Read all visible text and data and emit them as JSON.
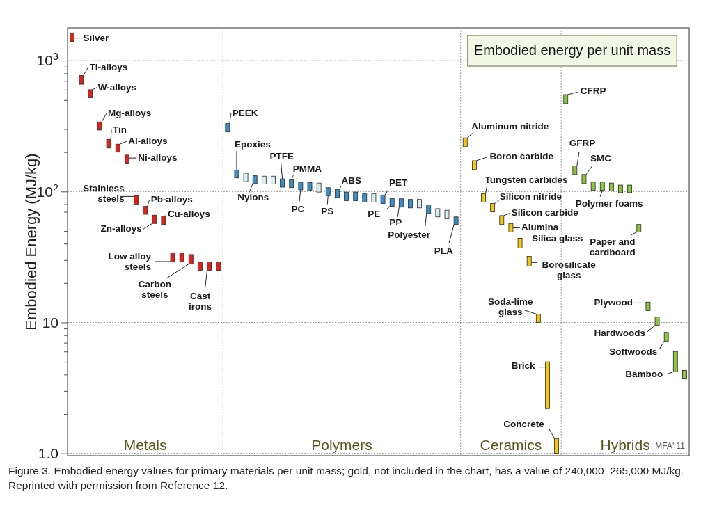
{
  "chart_data": {
    "type": "bar",
    "title": "Embodied energy per unit mass",
    "ylabel": "Embodied Energy (MJ/kg)",
    "log": true,
    "grid": true,
    "ylim": [
      0.96,
      1780
    ],
    "yticks": [
      {
        "value": 1,
        "label": "1.0"
      },
      {
        "value": 2,
        "label": null
      },
      {
        "value": 3,
        "label": null
      },
      {
        "value": 4,
        "label": null
      },
      {
        "value": 5,
        "label": null
      },
      {
        "value": 6,
        "label": null
      },
      {
        "value": 7,
        "label": null
      },
      {
        "value": 8,
        "label": null
      },
      {
        "value": 9,
        "label": null
      },
      10,
      {
        "value": 20,
        "label": null
      },
      {
        "value": 30,
        "label": null
      },
      {
        "value": 40,
        "label": null
      },
      {
        "value": 50,
        "label": null
      },
      {
        "value": 60,
        "label": null
      },
      {
        "value": 70,
        "label": null
      },
      {
        "value": 80,
        "label": null
      },
      {
        "value": 90,
        "label": null
      },
      {
        "value": 100,
        "label": "10$^{2}$"
      },
      {
        "value": 200,
        "label": null
      },
      {
        "value": 300,
        "label": null
      },
      {
        "value": 400,
        "label": null
      },
      {
        "value": 500,
        "label": null
      },
      {
        "value": 600,
        "label": null
      },
      {
        "value": 700,
        "label": null
      },
      {
        "value": 800,
        "label": null
      },
      {
        "value": 900,
        "label": null
      },
      {
        "value": 1000,
        "label": "10$^{3}$"
      }
    ],
    "categories": [
      null,
      null,
      null,
      null,
      null,
      null,
      null,
      null,
      null,
      null,
      null,
      null,
      null,
      null,
      null,
      null,
      null,
      null,
      null,
      null,
      null,
      null,
      null,
      null,
      null,
      null,
      null,
      null,
      null,
      null,
      null,
      null,
      null,
      null,
      null,
      null,
      null,
      null,
      null,
      null,
      null,
      null,
      null,
      null,
      null,
      null,
      null,
      null,
      null,
      null,
      null,
      null,
      null,
      null,
      null,
      null,
      null,
      null,
      null,
      null,
      null,
      null,
      null,
      null,
      null,
      null,
      null,
      null
    ],
    "series": [
      {
        "color": "#d7261e",
        "values": [
          220,
          110,
          80,
          45,
          35,
          30,
          27,
          13,
          10,
          9,
          9,
          5,
          5,
          5,
          4,
          4,
          4,
          null,
          null,
          null,
          null,
          null,
          null,
          null,
          null,
          null,
          null,
          null,
          null,
          null,
          null,
          null,
          null,
          null,
          null,
          null,
          null,
          null,
          null,
          null,
          null,
          null,
          null,
          null,
          null,
          null,
          null,
          null,
          null,
          null,
          null,
          null,
          null,
          null,
          null,
          null,
          null,
          null,
          null,
          null,
          null,
          null,
          null,
          null,
          null,
          null,
          null,
          null
        ],
        "base": [
          1400,
          660,
          520,
          295,
          215,
          200,
          163,
          80,
          67,
          57,
          56,
          29,
          29,
          28,
          25,
          25,
          25,
          null,
          null,
          null,
          null,
          null,
          null,
          null,
          null,
          null,
          null,
          null,
          null,
          null,
          null,
          null,
          null,
          null,
          null,
          null,
          null,
          null,
          null,
          null,
          null,
          null,
          null,
          null,
          null,
          null,
          null,
          null,
          null,
          null,
          null,
          null,
          null,
          null,
          null,
          null,
          null,
          null,
          null,
          null,
          null,
          null,
          null,
          null,
          null,
          null,
          null,
          null
        ]
      },
      {
        "values": [
          null,
          null,
          null,
          null,
          null,
          null,
          null,
          null,
          null,
          null,
          null,
          null,
          null,
          null,
          null,
          null,
          null,
          45,
          19,
          19,
          17,
          17,
          17,
          17,
          16,
          15,
          15,
          17,
          14,
          14,
          14,
          14,
          13,
          13,
          13,
          12,
          12,
          12,
          12,
          11,
          10,
          10,
          8,
          null,
          null,
          null,
          null,
          null,
          null,
          null,
          null,
          null,
          null,
          null,
          null,
          null,
          null,
          null,
          null,
          null,
          null,
          null,
          null,
          null,
          null,
          null,
          null,
          null
        ],
        "base": [
          null,
          null,
          null,
          null,
          null,
          null,
          null,
          null,
          null,
          null,
          null,
          null,
          null,
          null,
          null,
          null,
          null,
          285,
          127,
          119,
          115,
          114,
          114,
          108,
          107,
          103,
          102,
          99,
          93,
          90,
          85,
          85,
          83,
          83,
          81,
          77,
          76,
          75,
          75,
          68,
          64,
          62,
          56,
          null,
          null,
          null,
          null,
          null,
          null,
          null,
          null,
          null,
          null,
          null,
          null,
          null,
          null,
          null,
          null,
          null,
          null,
          null,
          null,
          null,
          null,
          null,
          null,
          null
        ],
        "colors": [
          null,
          null,
          null,
          null,
          null,
          null,
          null,
          null,
          null,
          null,
          null,
          null,
          null,
          null,
          null,
          null,
          null,
          "#3a8fc6",
          "#3a8fc6",
          "#d6efee",
          "#3a8fc6",
          "#d6efee",
          "#d6efee",
          "#3a8fc6",
          "#3a8fc6",
          "#3a8fc6",
          "#3a8fc6",
          "#d6efee",
          "#3a8fc6",
          "#3a8fc6",
          "#3a8fc6",
          "#3a8fc6",
          "#3a8fc6",
          "#d6efee",
          "#3a8fc6",
          "#3a8fc6",
          "#3a8fc6",
          "#3a8fc6",
          "#d6efee",
          "#3a8fc6",
          "#d6efee",
          "#d6efee",
          "#3a8fc6",
          null,
          null,
          null,
          null,
          null,
          null,
          null,
          null,
          null,
          null,
          null,
          null,
          null,
          null,
          null,
          null,
          null,
          null,
          null,
          null,
          null,
          null,
          null,
          null,
          null
        ]
      },
      {
        "color": "#f3c913",
        "values": [
          null,
          null,
          null,
          null,
          null,
          null,
          null,
          null,
          null,
          null,
          null,
          null,
          null,
          null,
          null,
          null,
          null,
          null,
          null,
          null,
          null,
          null,
          null,
          null,
          null,
          null,
          null,
          null,
          null,
          null,
          null,
          null,
          null,
          null,
          null,
          null,
          null,
          null,
          null,
          null,
          null,
          null,
          null,
          37,
          25,
          13,
          11,
          9.5,
          8,
          7,
          5,
          1.6,
          2.8,
          0.3,
          null,
          null,
          null,
          null,
          null,
          null,
          null,
          null,
          null,
          null,
          null,
          null,
          null,
          null
        ],
        "base": [
          null,
          null,
          null,
          null,
          null,
          null,
          null,
          null,
          null,
          null,
          null,
          null,
          null,
          null,
          null,
          null,
          null,
          null,
          null,
          null,
          null,
          null,
          null,
          null,
          null,
          null,
          null,
          null,
          null,
          null,
          null,
          null,
          null,
          null,
          null,
          null,
          null,
          null,
          null,
          null,
          null,
          null,
          null,
          220,
          147,
          83,
          70,
          56,
          49,
          37,
          27,
          10,
          2.2,
          1.0,
          null,
          null,
          null,
          null,
          null,
          null,
          null,
          null,
          null,
          null,
          null,
          null,
          null,
          null
        ]
      },
      {
        "color": "#8cc63e",
        "values": [
          null,
          null,
          null,
          null,
          null,
          null,
          null,
          null,
          null,
          null,
          null,
          null,
          null,
          null,
          null,
          null,
          null,
          null,
          null,
          null,
          null,
          null,
          null,
          null,
          null,
          null,
          null,
          null,
          null,
          null,
          null,
          null,
          null,
          null,
          null,
          null,
          null,
          null,
          null,
          null,
          null,
          null,
          null,
          null,
          null,
          null,
          null,
          null,
          null,
          null,
          null,
          null,
          null,
          null,
          80,
          22,
          20,
          16,
          16,
          15,
          14,
          14,
          7,
          2,
          1.5,
          1.2,
          1.8,
          0.6
        ],
        "base": [
          null,
          null,
          null,
          null,
          null,
          null,
          null,
          null,
          null,
          null,
          null,
          null,
          null,
          null,
          null,
          null,
          null,
          null,
          null,
          null,
          null,
          null,
          null,
          null,
          null,
          null,
          null,
          null,
          null,
          null,
          null,
          null,
          null,
          null,
          null,
          null,
          null,
          null,
          null,
          null,
          null,
          null,
          null,
          null,
          null,
          null,
          null,
          null,
          null,
          null,
          null,
          null,
          null,
          null,
          470,
          135,
          115,
          102,
          102,
          101,
          98,
          98,
          49,
          12.3,
          9.5,
          7.2,
          4.2,
          3.7
        ]
      }
    ],
    "annotations": [
      "Silver",
      "Ti-alloys",
      "W-alloys",
      "Mg-alloys",
      "Tin",
      "Al-alloys",
      "Ni-alloys",
      "Stainless steels",
      "Pb-alloys",
      "Zn-alloys",
      "Cu-alloys",
      "Low alloy steels",
      "Carbon steels",
      "Cast irons",
      "PEEK",
      "Epoxies",
      "Nylons",
      "PTFE",
      "PMMA",
      "PC",
      "PS",
      "ABS",
      "PET",
      "PE",
      "PP",
      "Polyester",
      "PLA",
      "Aluminum nitride",
      "Boron carbide",
      "Tungsten carbides",
      "Silicon nitride",
      "Silicon carbide",
      "Alumina",
      "Silica glass",
      "Borosilicate glass",
      "Soda-lime glass",
      "Brick",
      "Concrete",
      "CFRP",
      "GFRP",
      "SMC",
      "Polymer foams",
      "Paper and cardboard",
      "Plywood",
      "Hardwoods",
      "Softwoods",
      "Bamboo",
      "Metals",
      "Polymers",
      "Ceramics",
      "Hybrids",
      "MFA' 11",
      "Figure 3.  Embodied energy values for primary materials per unit mass; gold, not included in the chart, has a value of 240,000–265,000 MJ/kg. Reprinted with permission from Reference 12."
    ]
  }
}
